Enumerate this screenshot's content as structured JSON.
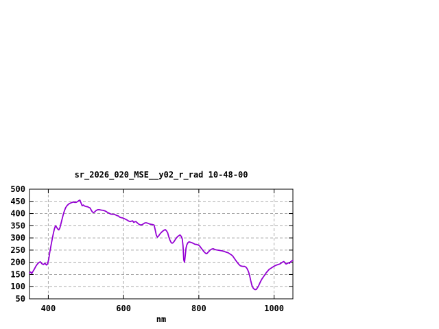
{
  "window": {
    "background_color": "#ffffff"
  },
  "chart_data": {
    "type": "line",
    "title": "sr_2026_020_MSE__y02_r_rad 10-48-00",
    "xlabel": "nm",
    "ylabel": "",
    "xlim": [
      350,
      1050
    ],
    "ylim": [
      50,
      500
    ],
    "x_ticks": [
      400,
      600,
      800,
      1000
    ],
    "y_ticks": [
      50,
      100,
      150,
      200,
      250,
      300,
      350,
      400,
      450,
      500
    ],
    "grid": "dashed",
    "legend_position": "none",
    "colors": {
      "line": "#9400d3",
      "grid": "#a8a8a8",
      "frame": "#000000",
      "text": "#000000"
    },
    "series": [
      {
        "name": "sr_2026_020_MSE__y02_r_rad",
        "color": "#9400d3",
        "points": [
          [
            350,
            157
          ],
          [
            353,
            160
          ],
          [
            356,
            154
          ],
          [
            359,
            162
          ],
          [
            363,
            172
          ],
          [
            367,
            184
          ],
          [
            371,
            193
          ],
          [
            375,
            199
          ],
          [
            379,
            202
          ],
          [
            383,
            194
          ],
          [
            387,
            191
          ],
          [
            391,
            196
          ],
          [
            395,
            189
          ],
          [
            398,
            193
          ],
          [
            401,
            212
          ],
          [
            404,
            242
          ],
          [
            407,
            268
          ],
          [
            410,
            292
          ],
          [
            413,
            316
          ],
          [
            416,
            336
          ],
          [
            419,
            350
          ],
          [
            422,
            344
          ],
          [
            425,
            337
          ],
          [
            428,
            333
          ],
          [
            431,
            342
          ],
          [
            434,
            361
          ],
          [
            437,
            379
          ],
          [
            440,
            398
          ],
          [
            443,
            412
          ],
          [
            446,
            424
          ],
          [
            450,
            433
          ],
          [
            454,
            439
          ],
          [
            458,
            442
          ],
          [
            462,
            445
          ],
          [
            466,
            447
          ],
          [
            470,
            446
          ],
          [
            474,
            446
          ],
          [
            478,
            449
          ],
          [
            481,
            453
          ],
          [
            484,
            455
          ],
          [
            487,
            443
          ],
          [
            490,
            432
          ],
          [
            493,
            435
          ],
          [
            496,
            431
          ],
          [
            500,
            429
          ],
          [
            504,
            428
          ],
          [
            508,
            425
          ],
          [
            511,
            423
          ],
          [
            514,
            414
          ],
          [
            517,
            407
          ],
          [
            520,
            404
          ],
          [
            523,
            406
          ],
          [
            526,
            411
          ],
          [
            530,
            415
          ],
          [
            534,
            416
          ],
          [
            538,
            415
          ],
          [
            542,
            414
          ],
          [
            546,
            413
          ],
          [
            550,
            411
          ],
          [
            554,
            408
          ],
          [
            558,
            404
          ],
          [
            562,
            401
          ],
          [
            566,
            398
          ],
          [
            570,
            397
          ],
          [
            574,
            397
          ],
          [
            578,
            395
          ],
          [
            582,
            392
          ],
          [
            586,
            390
          ],
          [
            590,
            385
          ],
          [
            594,
            383
          ],
          [
            598,
            382
          ],
          [
            602,
            379
          ],
          [
            606,
            376
          ],
          [
            610,
            373
          ],
          [
            614,
            369
          ],
          [
            618,
            367
          ],
          [
            621,
            369
          ],
          [
            624,
            370
          ],
          [
            627,
            364
          ],
          [
            630,
            366
          ],
          [
            633,
            367
          ],
          [
            637,
            361
          ],
          [
            641,
            356
          ],
          [
            645,
            353
          ],
          [
            649,
            354
          ],
          [
            653,
            358
          ],
          [
            657,
            362
          ],
          [
            661,
            362
          ],
          [
            665,
            360
          ],
          [
            669,
            357
          ],
          [
            673,
            356
          ],
          [
            677,
            355
          ],
          [
            681,
            353
          ],
          [
            684,
            334
          ],
          [
            687,
            311
          ],
          [
            690,
            303
          ],
          [
            693,
            308
          ],
          [
            696,
            315
          ],
          [
            700,
            322
          ],
          [
            704,
            328
          ],
          [
            708,
            332
          ],
          [
            711,
            334
          ],
          [
            714,
            329
          ],
          [
            717,
            322
          ],
          [
            720,
            305
          ],
          [
            723,
            292
          ],
          [
            726,
            282
          ],
          [
            729,
            278
          ],
          [
            732,
            281
          ],
          [
            735,
            287
          ],
          [
            738,
            294
          ],
          [
            741,
            301
          ],
          [
            744,
            306
          ],
          [
            747,
            309
          ],
          [
            750,
            312
          ],
          [
            753,
            307
          ],
          [
            756,
            296
          ],
          [
            758,
            268
          ],
          [
            760,
            210
          ],
          [
            762,
            200
          ],
          [
            764,
            228
          ],
          [
            766,
            258
          ],
          [
            768,
            271
          ],
          [
            771,
            280
          ],
          [
            774,
            284
          ],
          [
            778,
            282
          ],
          [
            782,
            280
          ],
          [
            786,
            277
          ],
          [
            790,
            274
          ],
          [
            794,
            273
          ],
          [
            798,
            271
          ],
          [
            802,
            267
          ],
          [
            806,
            259
          ],
          [
            810,
            251
          ],
          [
            814,
            243
          ],
          [
            818,
            237
          ],
          [
            821,
            235
          ],
          [
            824,
            240
          ],
          [
            827,
            245
          ],
          [
            830,
            250
          ],
          [
            834,
            254
          ],
          [
            838,
            256
          ],
          [
            842,
            253
          ],
          [
            846,
            251
          ],
          [
            850,
            250
          ],
          [
            854,
            249
          ],
          [
            858,
            248
          ],
          [
            862,
            247
          ],
          [
            866,
            245
          ],
          [
            870,
            243
          ],
          [
            874,
            241
          ],
          [
            878,
            239
          ],
          [
            882,
            235
          ],
          [
            886,
            231
          ],
          [
            890,
            226
          ],
          [
            894,
            217
          ],
          [
            898,
            208
          ],
          [
            902,
            200
          ],
          [
            906,
            192
          ],
          [
            910,
            186
          ],
          [
            914,
            184
          ],
          [
            918,
            183
          ],
          [
            922,
            183
          ],
          [
            926,
            179
          ],
          [
            929,
            172
          ],
          [
            932,
            161
          ],
          [
            935,
            146
          ],
          [
            938,
            124
          ],
          [
            941,
            106
          ],
          [
            944,
            95
          ],
          [
            947,
            90
          ],
          [
            950,
            88
          ],
          [
            953,
            89
          ],
          [
            956,
            96
          ],
          [
            959,
            104
          ],
          [
            962,
            114
          ],
          [
            965,
            124
          ],
          [
            968,
            132
          ],
          [
            971,
            139
          ],
          [
            975,
            148
          ],
          [
            979,
            157
          ],
          [
            983,
            164
          ],
          [
            987,
            171
          ],
          [
            991,
            175
          ],
          [
            995,
            179
          ],
          [
            999,
            183
          ],
          [
            1003,
            186
          ],
          [
            1007,
            189
          ],
          [
            1011,
            191
          ],
          [
            1015,
            193
          ],
          [
            1019,
            197
          ],
          [
            1023,
            201
          ],
          [
            1026,
            203
          ],
          [
            1029,
            197
          ],
          [
            1032,
            193
          ],
          [
            1035,
            195
          ],
          [
            1038,
            198
          ],
          [
            1041,
            196
          ],
          [
            1044,
            202
          ],
          [
            1047,
            206
          ],
          [
            1050,
            207
          ]
        ]
      }
    ]
  }
}
